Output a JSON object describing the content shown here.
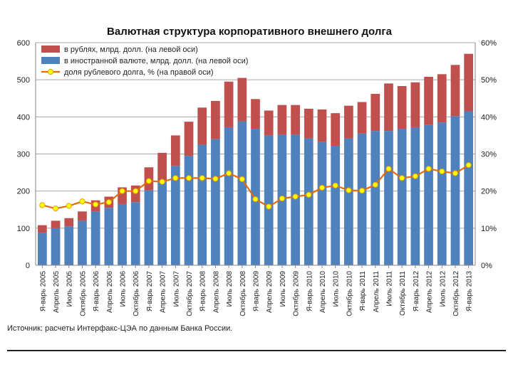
{
  "chart_data": {
    "type": "bar",
    "title": "Валютная структура корпоративного внешнего долга",
    "categories": [
      "Я-варь 2005",
      "Апрель 2005",
      "Июль 2005",
      "Октябрь 2005",
      "Я-варь 2006",
      "Апрель 2006",
      "Июль 2006",
      "Октябрь 2006",
      "Я-варь 2007",
      "Апрель 2007",
      "Июль 2007",
      "Октябрь 2007",
      "Я-варь 2008",
      "Апрель 2008",
      "Июль 2008",
      "Октябрь 2008",
      "Я-варь 2009",
      "Апрель 2009",
      "Июль 2009",
      "Октябрь 2009",
      "Я-варь 2010",
      "Апрель 2010",
      "Июль 2010",
      "Октябрь 2010",
      "Я-варь 2011",
      "Апрель 2011",
      "Июль 2011",
      "Октябрь 2011",
      "Я-варь 2012",
      "Апрель 2012",
      "Июль 2012",
      "Октябрь 2012",
      "Я-варь 2013"
    ],
    "series": [
      {
        "name": "в иностранной валюте, млрд. долл. (на левой оси)",
        "axis": "left",
        "stack": true,
        "color": "#4f81bd",
        "values": [
          88,
          100,
          105,
          120,
          145,
          155,
          165,
          170,
          202,
          225,
          268,
          295,
          325,
          340,
          372,
          388,
          368,
          350,
          352,
          352,
          342,
          332,
          322,
          342,
          355,
          362,
          362,
          368,
          372,
          378,
          385,
          402,
          415
        ]
      },
      {
        "name": "в рублях, млрд. долл. (на левой оси)",
        "axis": "left",
        "stack": true,
        "color": "#c0504d",
        "values": [
          20,
          20,
          22,
          25,
          30,
          30,
          45,
          45,
          62,
          78,
          82,
          92,
          100,
          103,
          123,
          117,
          80,
          67,
          80,
          80,
          80,
          88,
          88,
          88,
          85,
          100,
          128,
          115,
          121,
          130,
          130,
          138,
          155
        ]
      },
      {
        "name": "доля рублевого долга, % (на правой оси)",
        "axis": "right",
        "type": "line",
        "color": "#e36c09",
        "marker_color": "#ffff00",
        "values": [
          16.2,
          15.3,
          16.0,
          17.2,
          16.4,
          17.0,
          20.0,
          20.0,
          22.7,
          22.5,
          23.5,
          23.5,
          23.5,
          23.3,
          24.8,
          23.2,
          17.8,
          15.8,
          18.0,
          18.5,
          19.0,
          20.9,
          21.5,
          20.2,
          20.1,
          21.7,
          26.0,
          23.5,
          24.0,
          26.0,
          25.3,
          24.8,
          27.0
        ]
      }
    ],
    "y_left": {
      "min": 0,
      "max": 600,
      "ticks": [
        "0",
        "100",
        "200",
        "300",
        "400",
        "500",
        "600"
      ]
    },
    "y_right": {
      "min": 0,
      "max": 60,
      "ticks": [
        "0%",
        "10%",
        "20%",
        "30%",
        "40%",
        "50%",
        "60%"
      ]
    },
    "legend_placement": "top-left"
  },
  "source": "Источник: расчеты Интерфакс-ЦЭА по данным Банка России."
}
